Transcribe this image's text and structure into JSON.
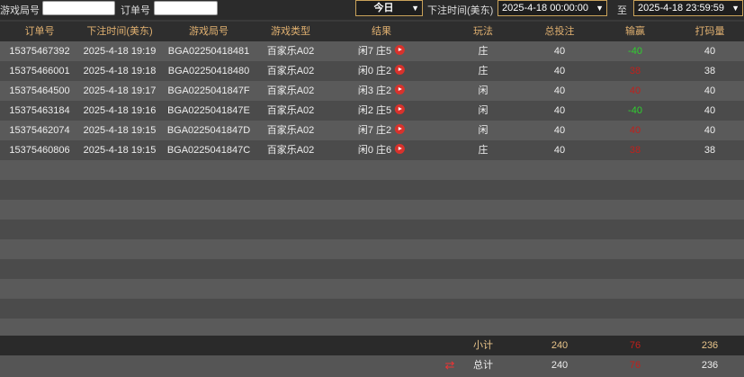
{
  "filters": {
    "round_label": "游戏局号",
    "round_value": "",
    "order_label": "订单号",
    "order_value": "",
    "period": "今日",
    "time_label": "下注时间(美东)",
    "start": "2025-4-18 00:00:00",
    "to_label": "至",
    "end": "2025-4-18 23:59:59"
  },
  "columns": [
    "订单号",
    "下注时间(美东)",
    "游戏局号",
    "游戏类型",
    "结果",
    "玩法",
    "总投注",
    "输赢",
    "打码量"
  ],
  "rows": [
    {
      "order": "15375467392",
      "time": "2025-4-18 19:19",
      "round": "BGA02250418481",
      "game": "百家乐A02",
      "result": "闲7 庄5",
      "play": "庄",
      "bet": "40",
      "win": "-40",
      "win_color": "green",
      "valid": "40"
    },
    {
      "order": "15375466001",
      "time": "2025-4-18 19:18",
      "round": "BGA02250418480",
      "game": "百家乐A02",
      "result": "闲0 庄2",
      "play": "庄",
      "bet": "40",
      "win": "38",
      "win_color": "red",
      "valid": "38"
    },
    {
      "order": "15375464500",
      "time": "2025-4-18 19:17",
      "round": "BGA0225041847F",
      "game": "百家乐A02",
      "result": "闲3 庄2",
      "play": "闲",
      "bet": "40",
      "win": "40",
      "win_color": "red",
      "valid": "40"
    },
    {
      "order": "15375463184",
      "time": "2025-4-18 19:16",
      "round": "BGA0225041847E",
      "game": "百家乐A02",
      "result": "闲2 庄5",
      "play": "闲",
      "bet": "40",
      "win": "-40",
      "win_color": "green",
      "valid": "40"
    },
    {
      "order": "15375462074",
      "time": "2025-4-18 19:15",
      "round": "BGA0225041847D",
      "game": "百家乐A02",
      "result": "闲7 庄2",
      "play": "闲",
      "bet": "40",
      "win": "40",
      "win_color": "red",
      "valid": "40"
    },
    {
      "order": "15375460806",
      "time": "2025-4-18 19:15",
      "round": "BGA0225041847C",
      "game": "百家乐A02",
      "result": "闲0 庄6",
      "play": "庄",
      "bet": "40",
      "win": "38",
      "win_color": "red",
      "valid": "38"
    }
  ],
  "subtotal": {
    "label": "小计",
    "bet": "240",
    "win": "76",
    "valid": "236"
  },
  "total": {
    "label": "总计",
    "bet": "240",
    "win": "76",
    "valid": "236",
    "icon": "refresh-icon"
  },
  "colors": {
    "header_text": "#e0b070",
    "win_negative": "#2fd12f",
    "win_positive": "#c0201c"
  }
}
